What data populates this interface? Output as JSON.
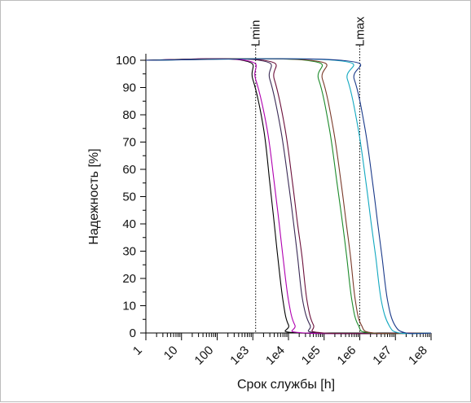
{
  "chart_data": {
    "type": "line",
    "xlabel": "Срок службы [h]",
    "ylabel": "Надежность [%]",
    "x_scale": "log",
    "xlim": [
      1,
      100000000
    ],
    "ylim": [
      0,
      100
    ],
    "grid": false,
    "x_ticks": [
      {
        "value": 1,
        "label": "1"
      },
      {
        "value": 10,
        "label": "10"
      },
      {
        "value": 100,
        "label": "100"
      },
      {
        "value": 1000,
        "label": "1e3"
      },
      {
        "value": 10000,
        "label": "1e4"
      },
      {
        "value": 100000,
        "label": "1e5"
      },
      {
        "value": 1000000,
        "label": "1e6"
      },
      {
        "value": 10000000,
        "label": "1e7"
      },
      {
        "value": 100000000,
        "label": "1e8"
      }
    ],
    "y_ticks": [
      {
        "value": 0,
        "label": "0"
      },
      {
        "value": 10,
        "label": "10"
      },
      {
        "value": 20,
        "label": "20"
      },
      {
        "value": 30,
        "label": "30"
      },
      {
        "value": 40,
        "label": "40"
      },
      {
        "value": 50,
        "label": "50"
      },
      {
        "value": 60,
        "label": "60"
      },
      {
        "value": 70,
        "label": "70"
      },
      {
        "value": 80,
        "label": "80"
      },
      {
        "value": 90,
        "label": "90"
      },
      {
        "value": 100,
        "label": "100"
      }
    ],
    "markers": [
      {
        "label": "Lmin",
        "x": 1200
      },
      {
        "label": "Lmax",
        "x": 1000000
      }
    ],
    "series": [
      {
        "color": "#000000",
        "points": [
          [
            1,
            100
          ],
          [
            500,
            100
          ],
          [
            1000,
            93
          ],
          [
            2000,
            75
          ],
          [
            3000,
            55
          ],
          [
            4000,
            40
          ],
          [
            5000,
            28
          ],
          [
            7000,
            12
          ],
          [
            10000,
            3
          ],
          [
            20000,
            0
          ],
          [
            100000000,
            0
          ]
        ]
      },
      {
        "color": "#b000b0",
        "points": [
          [
            1,
            100
          ],
          [
            600,
            100
          ],
          [
            1200,
            93
          ],
          [
            2500,
            75
          ],
          [
            4000,
            55
          ],
          [
            5500,
            40
          ],
          [
            7000,
            28
          ],
          [
            10000,
            12
          ],
          [
            15000,
            3
          ],
          [
            30000,
            0
          ],
          [
            100000000,
            0
          ]
        ]
      },
      {
        "color": "#3a2a55",
        "points": [
          [
            1,
            100
          ],
          [
            1500,
            100
          ],
          [
            3000,
            93
          ],
          [
            6000,
            75
          ],
          [
            10000,
            55
          ],
          [
            14000,
            40
          ],
          [
            18000,
            28
          ],
          [
            25000,
            12
          ],
          [
            40000,
            3
          ],
          [
            80000,
            0
          ],
          [
            100000000,
            0
          ]
        ]
      },
      {
        "color": "#6b0f3a",
        "points": [
          [
            1,
            100
          ],
          [
            2000,
            100
          ],
          [
            4000,
            93
          ],
          [
            8000,
            75
          ],
          [
            13000,
            55
          ],
          [
            18000,
            40
          ],
          [
            24000,
            28
          ],
          [
            33000,
            12
          ],
          [
            50000,
            3
          ],
          [
            100000,
            0
          ],
          [
            100000000,
            0
          ]
        ]
      },
      {
        "color": "#1c8a2a",
        "points": [
          [
            1,
            100
          ],
          [
            30000,
            100
          ],
          [
            70000,
            93
          ],
          [
            140000,
            75
          ],
          [
            230000,
            55
          ],
          [
            330000,
            40
          ],
          [
            430000,
            28
          ],
          [
            600000,
            12
          ],
          [
            900000,
            3
          ],
          [
            2000000,
            0
          ],
          [
            100000000,
            0
          ]
        ]
      },
      {
        "color": "#7a3a2a",
        "points": [
          [
            1,
            100
          ],
          [
            40000,
            100
          ],
          [
            90000,
            93
          ],
          [
            180000,
            75
          ],
          [
            300000,
            55
          ],
          [
            420000,
            40
          ],
          [
            550000,
            28
          ],
          [
            750000,
            12
          ],
          [
            1100000,
            3
          ],
          [
            2500000,
            0
          ],
          [
            100000000,
            0
          ]
        ]
      },
      {
        "color": "#12a8c0",
        "points": [
          [
            1,
            100
          ],
          [
            200000,
            100
          ],
          [
            450000,
            93
          ],
          [
            900000,
            75
          ],
          [
            1500000,
            55
          ],
          [
            2100000,
            40
          ],
          [
            2800000,
            28
          ],
          [
            4000000,
            12
          ],
          [
            6500000,
            3
          ],
          [
            13000000,
            0
          ],
          [
            100000000,
            0
          ]
        ]
      },
      {
        "color": "#1a3a8a",
        "points": [
          [
            1,
            100
          ],
          [
            300000,
            100
          ],
          [
            700000,
            93
          ],
          [
            1400000,
            75
          ],
          [
            2300000,
            55
          ],
          [
            3200000,
            40
          ],
          [
            4200000,
            28
          ],
          [
            6000000,
            12
          ],
          [
            9500000,
            3
          ],
          [
            20000000,
            0
          ],
          [
            100000000,
            0
          ]
        ]
      }
    ]
  }
}
